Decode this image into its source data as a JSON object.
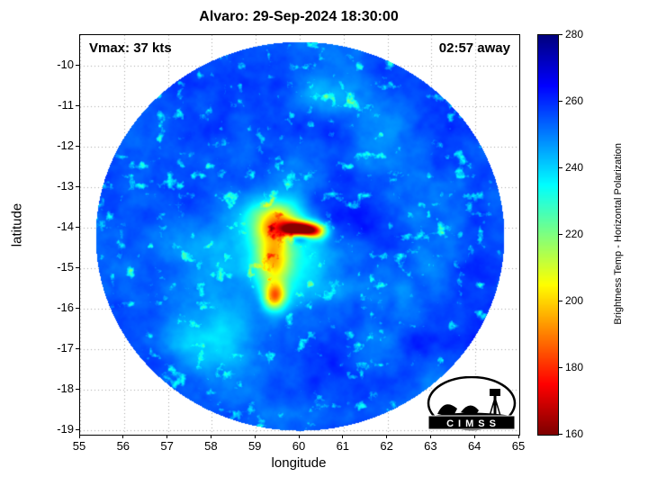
{
  "chart_data": {
    "type": "heatmap",
    "title": "Alvaro: 29-Sep-2024 18:30:00",
    "xlabel": "longitude",
    "ylabel": "latitude",
    "xlim": [
      55,
      65
    ],
    "ylim": [
      -19.11,
      -9.24
    ],
    "xticks": [
      55,
      56,
      57,
      58,
      59,
      60,
      61,
      62,
      63,
      64,
      65
    ],
    "yticks": [
      -10,
      -11,
      -12,
      -13,
      -14,
      -15,
      -16,
      -17,
      -18,
      -19
    ],
    "grid": "dotted",
    "annotations": {
      "vmax": "Vmax: 37 kts",
      "time_away": "02:57 away"
    },
    "colorbar": {
      "label": "Brightness Temp - Horizontal Polarization",
      "min": 160,
      "max": 280,
      "ticks": [
        160,
        180,
        200,
        220,
        240,
        260,
        280
      ],
      "colormap": "jet_reversed"
    },
    "swath": {
      "center_lon": 60.0,
      "center_lat": -14.2,
      "radius_lon_deg": 4.65,
      "radius_lat_deg": 4.8,
      "base_temp_k": 255,
      "storm": {
        "name": "Alvaro",
        "center_lon": 59.95,
        "center_lat": -14.0,
        "min_temp_k": 161,
        "blobs": [
          {
            "lon": 59.97,
            "lat": -14.02,
            "rlon": 0.4,
            "rlat": 0.19,
            "dT": 92
          },
          {
            "lon": 59.97,
            "lat": -14.24,
            "rlon": 0.3,
            "rlat": 0.13,
            "dT": -30
          },
          {
            "lon": 60.34,
            "lat": -14.08,
            "rlon": 0.28,
            "rlat": 0.2,
            "dT": 46
          },
          {
            "lon": 59.45,
            "lat": -13.82,
            "rlon": 0.55,
            "rlat": 0.48,
            "dT": 40
          },
          {
            "lon": 59.38,
            "lat": -14.7,
            "rlon": 0.4,
            "rlat": 0.75,
            "dT": 38
          },
          {
            "lon": 59.42,
            "lat": -15.68,
            "rlon": 0.26,
            "rlat": 0.34,
            "dT": 55
          },
          {
            "lon": 59.75,
            "lat": -14.45,
            "rlon": 1.15,
            "rlat": 1.3,
            "dT": 22
          },
          {
            "lon": 60.95,
            "lat": -13.7,
            "rlon": 1.25,
            "rlat": 1.0,
            "dT": -12
          },
          {
            "lon": 57.7,
            "lat": -16.8,
            "rlon": 1.05,
            "rlat": 0.6,
            "dT": 10
          },
          {
            "lon": 60.6,
            "lat": -10.8,
            "rlon": 1.1,
            "rlat": 0.45,
            "dT": 7
          }
        ]
      }
    }
  },
  "logo": {
    "text": "CIMSS"
  },
  "colors": {
    "background": "#ffffff",
    "grid": "#a8a8a8",
    "axis": "#000000",
    "text": "#000000"
  }
}
